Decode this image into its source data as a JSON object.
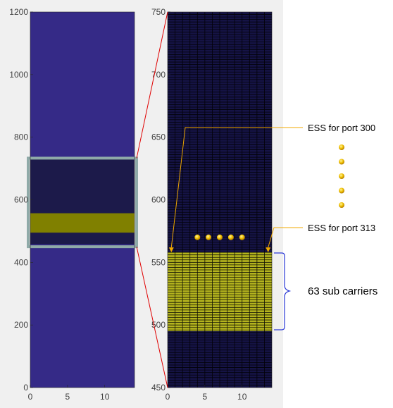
{
  "chart_data": [
    {
      "type": "heatmap",
      "panel": "overview",
      "xlim": [
        0,
        14
      ],
      "ylim": [
        0,
        1200
      ],
      "xticks": [
        0,
        5,
        10
      ],
      "yticks": [
        0,
        200,
        400,
        600,
        800,
        1000,
        1200
      ],
      "colors": {
        "background": "#352a87",
        "band_dark": "#1c1a4a",
        "band_highlight": "#808000"
      },
      "bands": [
        {
          "y0": 0,
          "y1": 1200,
          "value": "background"
        },
        {
          "y0": 458,
          "y1": 731,
          "value": "band_dark"
        },
        {
          "y0": 495,
          "y1": 557,
          "value": "band_highlight"
        }
      ],
      "zoom_box": {
        "x0": 0,
        "x1": 14,
        "y0": 450,
        "y1": 733,
        "color": "#8faaa8"
      },
      "grid": false
    },
    {
      "type": "heatmap",
      "panel": "zoom",
      "xlim": [
        0,
        14
      ],
      "ylim": [
        450,
        750
      ],
      "xticks": [
        0,
        5,
        10
      ],
      "yticks": [
        450,
        500,
        550,
        600,
        650,
        700,
        750
      ],
      "colors": {
        "background": "#151345",
        "band_highlight": "#b4b41e",
        "grid_line": "#000000"
      },
      "bands": [
        {
          "y0": 495,
          "y1": 558,
          "value": "band_highlight"
        }
      ],
      "cell_grid": true,
      "dots_y": 570,
      "dots_x": [
        4,
        5.5,
        7,
        8.5,
        10
      ],
      "markers": [
        {
          "x": 0.5,
          "y": 558,
          "label": "ESS for port 300"
        },
        {
          "x": 13.5,
          "y": 558,
          "label": "ESS for port 313"
        }
      ],
      "brace_label": "63 sub carriers"
    }
  ],
  "annotations": {
    "ess_port_300": "ESS for port 300",
    "ess_port_313": "ESS for port 313",
    "sub_carriers": "63 sub carriers",
    "vertical_dots_count": 5
  }
}
